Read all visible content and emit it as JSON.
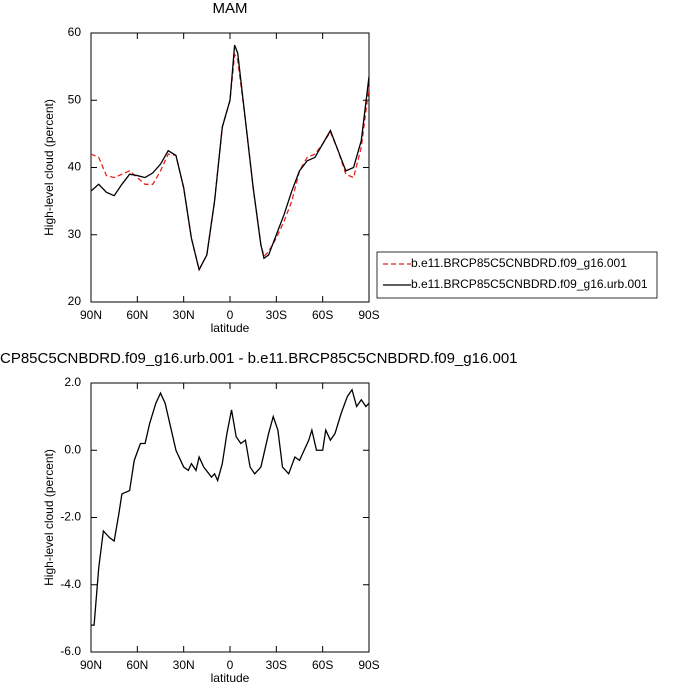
{
  "chart_data": [
    {
      "type": "line",
      "title": "MAM",
      "xlabel": "latitude",
      "ylabel": "High-level cloud (percent)",
      "xlim": [
        90,
        -90
      ],
      "xticks": [
        {
          "value": 90,
          "label": "90N"
        },
        {
          "value": 60,
          "label": "60N"
        },
        {
          "value": 30,
          "label": "30N"
        },
        0,
        {
          "value": -30,
          "label": "30S"
        },
        {
          "value": -60,
          "label": "60S"
        },
        {
          "value": -90,
          "label": "90S"
        }
      ],
      "ylim": [
        20,
        60
      ],
      "yticks": [
        20,
        30,
        40,
        50,
        60
      ],
      "x": [
        90,
        85,
        80,
        75,
        70,
        65,
        60,
        55,
        50,
        45,
        40,
        35,
        30,
        25,
        20,
        15,
        10,
        5,
        0,
        -3,
        -5,
        -10,
        -15,
        -20,
        -22,
        -25,
        -30,
        -35,
        -40,
        -45,
        -50,
        -55,
        -60,
        -65,
        -70,
        -75,
        -80,
        -85,
        -90
      ],
      "legend": "outside-right",
      "series": [
        {
          "name": "b.e11.BRCP85C5CNBDRD.f09_g16.001",
          "color": "#e8221f",
          "dash": true,
          "values": [
            42,
            41.5,
            38.8,
            38.5,
            39,
            39.5,
            38.5,
            37.5,
            37.5,
            39.5,
            42,
            41.8,
            37,
            29.5,
            24.8,
            27,
            35,
            46,
            50,
            56.8,
            56,
            47,
            37,
            28.5,
            26.8,
            27.5,
            29.5,
            32,
            35,
            39.5,
            41.5,
            42,
            43.5,
            45.3,
            42.5,
            39,
            38.5,
            43,
            52
          ]
        },
        {
          "name": "b.e11.BRCP85C5CNBDRD.f09_g16.urb.001",
          "color": "#000000",
          "dash": false,
          "values": [
            36.5,
            37.5,
            36.3,
            35.8,
            37.5,
            39,
            38.8,
            38.5,
            39.2,
            40.5,
            42.5,
            41.8,
            37,
            29.5,
            24.8,
            27,
            35,
            46,
            50,
            58.2,
            57,
            47,
            37,
            28.5,
            26.5,
            27,
            30,
            33,
            36.5,
            39.5,
            41,
            41.5,
            43.5,
            45.5,
            42.5,
            39.5,
            40,
            44,
            53.5
          ]
        }
      ]
    },
    {
      "type": "line",
      "title": "CP85C5CNBDRD.f09_g16.urb.001 - b.e11.BRCP85C5CNBDRD.f09_g16.001",
      "xlabel": "latitude",
      "ylabel": "High-level cloud (percent)",
      "xlim": [
        90,
        -90
      ],
      "xticks": [
        {
          "value": 90,
          "label": "90N"
        },
        {
          "value": 60,
          "label": "60N"
        },
        {
          "value": 30,
          "label": "30N"
        },
        0,
        {
          "value": -30,
          "label": "30S"
        },
        {
          "value": -60,
          "label": "60S"
        },
        {
          "value": -90,
          "label": "90S"
        }
      ],
      "ylim": [
        -6,
        2
      ],
      "yticks": [
        {
          "value": -6,
          "label": "-6.0"
        },
        {
          "value": -4,
          "label": "-4.0"
        },
        {
          "value": -2,
          "label": "-2.0"
        },
        {
          "value": 0,
          "label": "0.0"
        },
        {
          "value": 2,
          "label": "2.0"
        }
      ],
      "x": [
        90,
        88,
        85,
        82,
        78,
        75,
        72,
        70,
        65,
        62,
        58,
        55,
        52,
        48,
        45,
        42,
        38,
        35,
        30,
        27,
        25,
        22,
        20,
        17,
        12,
        10,
        8,
        5,
        2,
        -1,
        -4,
        -7,
        -10,
        -13,
        -16,
        -20,
        -25,
        -28,
        -31,
        -34,
        -38,
        -42,
        -45,
        -48,
        -51,
        -53,
        -56,
        -60,
        -62,
        -65,
        -68,
        -72,
        -76,
        -79,
        -82,
        -85,
        -88,
        -90
      ],
      "series": [
        {
          "color": "#000000",
          "dash": false,
          "values": [
            -5.2,
            -5.2,
            -3.5,
            -2.4,
            -2.6,
            -2.7,
            -1.9,
            -1.3,
            -1.2,
            -0.3,
            0.2,
            0.2,
            0.8,
            1.4,
            1.7,
            1.4,
            0.6,
            0.0,
            -0.5,
            -0.6,
            -0.4,
            -0.6,
            -0.2,
            -0.5,
            -0.8,
            -0.7,
            -0.9,
            -0.4,
            0.5,
            1.2,
            0.4,
            0.2,
            0.3,
            -0.5,
            -0.7,
            -0.5,
            0.5,
            1.0,
            0.6,
            -0.5,
            -0.7,
            -0.2,
            -0.3,
            0.0,
            0.3,
            0.6,
            0.0,
            0.0,
            0.6,
            0.3,
            0.5,
            1.1,
            1.6,
            1.8,
            1.3,
            1.5,
            1.3,
            1.4
          ]
        }
      ]
    }
  ]
}
